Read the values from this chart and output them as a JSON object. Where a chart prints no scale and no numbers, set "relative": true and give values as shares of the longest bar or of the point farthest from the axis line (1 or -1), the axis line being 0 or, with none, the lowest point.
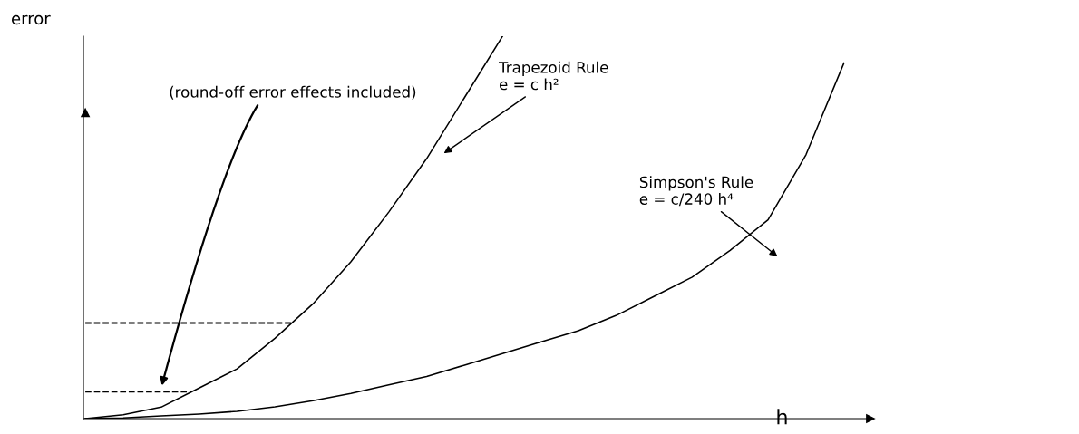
{
  "chart_data": {
    "type": "line",
    "relative": true,
    "xlabel": "h",
    "ylabel": "error",
    "categories": [
      null,
      null,
      null,
      null,
      null,
      null,
      null,
      null,
      null,
      null,
      null,
      null,
      null,
      null,
      null,
      null,
      null,
      null,
      null,
      null,
      null
    ],
    "series": [
      {
        "name": "Trapezoid Rule",
        "color": "#000000",
        "values": [
          0,
          0.01,
          0.03,
          0.08,
          0.13,
          0.21,
          0.3,
          0.41,
          0.54,
          0.68,
          0.84,
          1.0,
          null,
          null,
          null,
          null,
          null,
          null,
          null,
          null,
          null
        ]
      },
      {
        "name": "Simpson's Rule",
        "color": "#000000",
        "values": [
          0,
          0.002,
          0.007,
          0.012,
          0.019,
          0.031,
          0.047,
          0.066,
          0.088,
          0.11,
          0.14,
          0.17,
          0.2,
          0.23,
          0.27,
          0.32,
          0.37,
          0.44,
          0.52,
          0.69,
          0.93
        ]
      }
    ],
    "ref_lines": [
      {
        "axis": "y",
        "value": 0.25,
        "color": "#000000",
        "line_style": "dashed"
      },
      {
        "axis": "y",
        "value": 0.07,
        "color": "#000000",
        "line_style": "dashed"
      }
    ],
    "annotations": [
      "(round-off error effects included)",
      "e = c h²",
      "e = c/240 h⁴"
    ],
    "legend": false,
    "marker": "none",
    "line_style": "solid"
  }
}
